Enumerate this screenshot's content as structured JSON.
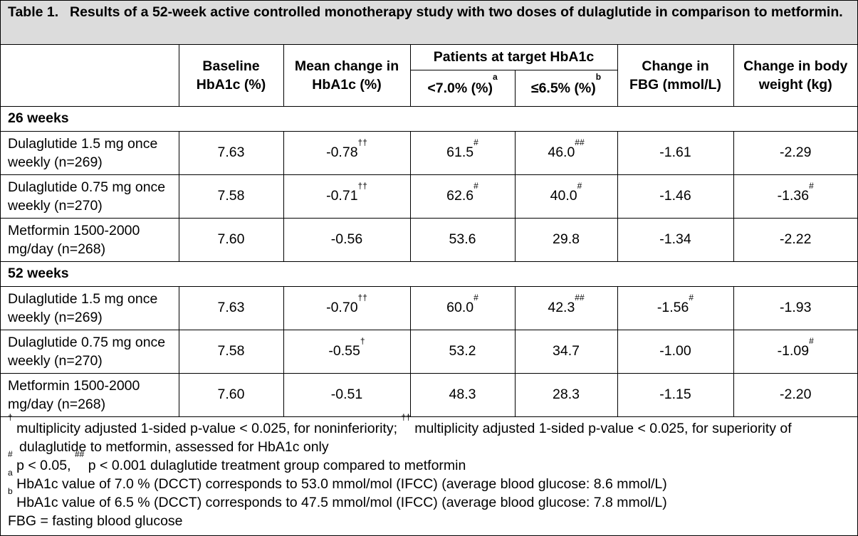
{
  "title": {
    "prefix": "Table 1.",
    "text": "Results of a 52-week active controlled monotherapy study with two doses of dulaglutide in comparison to metformin."
  },
  "columns": {
    "baseline": "Baseline HbA1c (%)",
    "mean_change": "Mean change in HbA1c (%)",
    "target_group": "Patients at target HbA1c",
    "target_7": "<7.0% (%)",
    "target_7_sup": "a",
    "target_65": "≤6.5% (%)",
    "target_65_sup": "b",
    "fbg": "Change in FBG (mmol/L)",
    "weight": "Change in body weight (kg)"
  },
  "sections": [
    {
      "label": "26 weeks",
      "rows": [
        {
          "name": "Dulaglutide 1.5 mg once weekly (n=269)",
          "baseline": "7.63",
          "mean": "-0.78",
          "mean_sup": "††",
          "t7": "61.5",
          "t7_sup": "#",
          "t65": "46.0",
          "t65_sup": "##",
          "fbg": "-1.61",
          "fbg_sup": "",
          "weight": "-2.29",
          "weight_sup": ""
        },
        {
          "name": "Dulaglutide 0.75 mg once weekly (n=270)",
          "baseline": "7.58",
          "mean": "-0.71",
          "mean_sup": "††",
          "t7": "62.6",
          "t7_sup": "#",
          "t65": "40.0",
          "t65_sup": "#",
          "fbg": "-1.46",
          "fbg_sup": "",
          "weight": "-1.36",
          "weight_sup": "#"
        },
        {
          "name": "Metformin 1500-2000 mg/day (n=268)",
          "baseline": "7.60",
          "mean": "-0.56",
          "mean_sup": "",
          "t7": "53.6",
          "t7_sup": "",
          "t65": "29.8",
          "t65_sup": "",
          "fbg": "-1.34",
          "fbg_sup": "",
          "weight": "-2.22",
          "weight_sup": ""
        }
      ]
    },
    {
      "label": "52 weeks",
      "rows": [
        {
          "name": "Dulaglutide 1.5 mg once weekly (n=269)",
          "baseline": "7.63",
          "mean": "-0.70",
          "mean_sup": "††",
          "t7": "60.0",
          "t7_sup": "#",
          "t65": "42.3",
          "t65_sup": "##",
          "fbg": "-1.56",
          "fbg_sup": "#",
          "weight": "-1.93",
          "weight_sup": ""
        },
        {
          "name": "Dulaglutide 0.75 mg once weekly (n=270)",
          "baseline": "7.58",
          "mean": "-0.55",
          "mean_sup": "†",
          "t7": "53.2",
          "t7_sup": "",
          "t65": "34.7",
          "t65_sup": "",
          "fbg": "-1.00",
          "fbg_sup": "",
          "weight": "-1.09",
          "weight_sup": "#"
        },
        {
          "name": "Metformin 1500-2000 mg/day (n=268)",
          "baseline": "7.60",
          "mean": "-0.51",
          "mean_sup": "",
          "t7": "48.3",
          "t7_sup": "",
          "t65": "28.3",
          "t65_sup": "",
          "fbg": "-1.15",
          "fbg_sup": "",
          "weight": "-2.20",
          "weight_sup": ""
        }
      ]
    }
  ],
  "footnotes": {
    "n1_sup_a": "†",
    "n1_text_a": " multiplicity adjusted 1-sided p-value < 0.025, for noninferiority; ",
    "n1_sup_b": "††",
    "n1_text_b": " multiplicity adjusted 1-sided p-value < 0.025, for superiority of dulaglutide to metformin, assessed for HbA1c only",
    "n2_sup_a": "#",
    "n2_text_a": " p < 0.05, ",
    "n2_sup_b": "##",
    "n2_text_b": " p < 0.001 dulaglutide treatment group compared to metformin",
    "n3_sup": "a",
    "n3_text": " HbA1c value of 7.0 % (DCCT) corresponds to 53.0 mmol/mol (IFCC) (average blood glucose: 8.6 mmol/L)",
    "n4_sup": "b",
    "n4_text": " HbA1c value of 6.5 % (DCCT) corresponds to 47.5 mmol/mol (IFCC) (average blood glucose: 7.8 mmol/L)",
    "n5_text": "FBG = fasting blood glucose"
  },
  "colors": {
    "title_background": "#dcdcdc",
    "border": "#000000"
  }
}
